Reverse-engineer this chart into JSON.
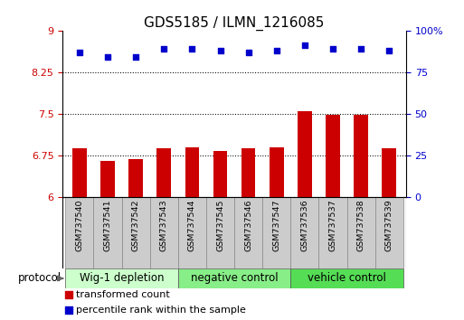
{
  "title": "GDS5185 / ILMN_1216085",
  "samples": [
    "GSM737540",
    "GSM737541",
    "GSM737542",
    "GSM737543",
    "GSM737544",
    "GSM737545",
    "GSM737546",
    "GSM737547",
    "GSM737536",
    "GSM737537",
    "GSM737538",
    "GSM737539"
  ],
  "bar_values": [
    6.87,
    6.65,
    6.68,
    6.88,
    6.9,
    6.83,
    6.87,
    6.9,
    7.55,
    7.48,
    7.48,
    6.88
  ],
  "dot_values_pct": [
    87,
    84,
    84,
    89,
    89,
    88,
    87,
    88,
    91,
    89,
    89,
    88
  ],
  "bar_color": "#cc0000",
  "dot_color": "#0000cc",
  "ymin": 6,
  "ymax": 9,
  "yticks_left": [
    6,
    6.75,
    7.5,
    8.25,
    9
  ],
  "yticks_right": [
    0,
    25,
    50,
    75,
    100
  ],
  "grid_values": [
    6.75,
    7.5,
    8.25
  ],
  "group_labels": [
    "Wig-1 depletion",
    "negative control",
    "vehicle control"
  ],
  "group_starts": [
    0,
    4,
    8
  ],
  "group_ends": [
    4,
    8,
    12
  ],
  "group_colors": [
    "#ccffcc",
    "#88ee88",
    "#55dd55"
  ],
  "sample_box_color": "#cccccc",
  "protocol_label": "protocol",
  "legend_bar": "transformed count",
  "legend_dot": "percentile rank within the sample",
  "title_fontsize": 11,
  "axis_fontsize": 8,
  "group_fontsize": 8.5,
  "legend_fontsize": 8,
  "bar_width": 0.5,
  "fig_width": 5.13,
  "fig_height": 3.54,
  "fig_dpi": 100
}
